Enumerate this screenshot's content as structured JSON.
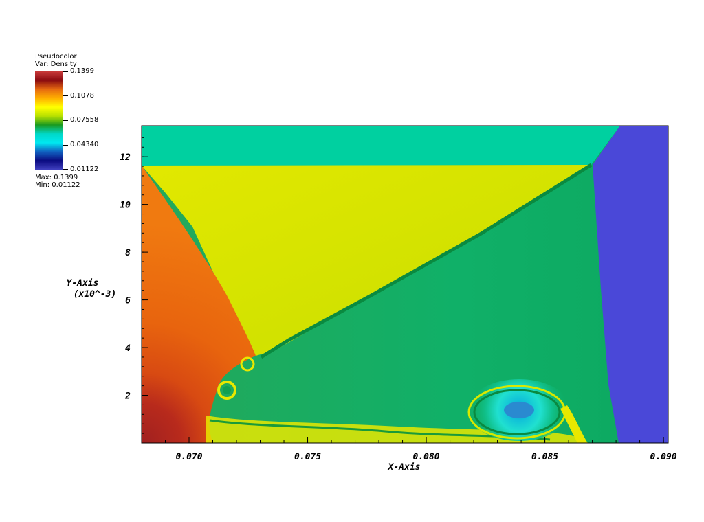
{
  "legend": {
    "title_line1": "Pseudocolor",
    "title_line2": "Var: Density",
    "ticks": [
      "0.1399",
      "0.1078",
      "0.07558",
      "0.04340",
      "0.01122"
    ],
    "max_label": "Max: 0.1399",
    "min_label": "Min: 0.01122",
    "colormap": [
      "#c93a3a",
      "#8a0a10",
      "#e66a10",
      "#ffb000",
      "#ffff00",
      "#b8e000",
      "#1a9a20",
      "#00d8c8",
      "#00e8f0",
      "#1060c0",
      "#0a0a80",
      "#4040c0"
    ]
  },
  "chart_data": {
    "type": "heatmap",
    "title": "",
    "xlabel": "X-Axis",
    "ylabel_line1": "Y-Axis",
    "ylabel_line2": "(x10^-3)",
    "xlim": [
      0.068,
      0.0902
    ],
    "ylim": [
      0.0,
      13.3
    ],
    "x_ticks": [
      "0.070",
      "0.075",
      "0.080",
      "0.085",
      "0.090"
    ],
    "x_tick_values": [
      0.07,
      0.075,
      0.08,
      0.085,
      0.09
    ],
    "y_ticks": [
      "2",
      "4",
      "6",
      "8",
      "10",
      "12"
    ],
    "y_tick_values": [
      2,
      4,
      6,
      8,
      10,
      12
    ],
    "variable": "Density",
    "value_range": [
      0.01122,
      0.1399
    ],
    "regions": [
      {
        "name": "upper band",
        "color": "#00d0a0",
        "density_approx": 0.055
      },
      {
        "name": "yellow wedge",
        "color": "#dde600",
        "density_approx": 0.085
      },
      {
        "name": "left high-density zone",
        "color": "#e85a10",
        "density_approx": 0.11
      },
      {
        "name": "central green region",
        "color": "#10b060",
        "density_approx": 0.065
      },
      {
        "name": "right low-density region",
        "color": "#4a48d8",
        "density_approx": 0.025
      },
      {
        "name": "vortex core",
        "color": "#20a8c8",
        "density_approx": 0.045
      }
    ]
  }
}
